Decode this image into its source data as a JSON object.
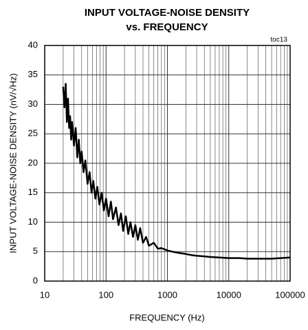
{
  "chart_data": {
    "type": "line",
    "title": "INPUT VOLTAGE-NOISE DENSITY",
    "subtitle": "vs. FREQUENCY",
    "annotation": "toc13",
    "xlabel": "FREQUENCY (Hz)",
    "ylabel": "INPUT VOLTAGE-NOISE DENSITY (nV/√Hz)",
    "xscale": "log",
    "grid": true,
    "xlim": [
      10,
      100000
    ],
    "ylim": [
      0,
      40
    ],
    "xticks": [
      10,
      100,
      1000,
      10000,
      100000
    ],
    "x_minor_ticks": [
      20,
      30,
      40,
      50,
      60,
      70,
      80,
      90,
      200,
      300,
      400,
      500,
      600,
      700,
      800,
      900,
      2000,
      3000,
      4000,
      5000,
      6000,
      7000,
      8000,
      9000,
      20000,
      30000,
      40000,
      50000,
      60000,
      70000,
      80000,
      90000
    ],
    "yticks": [
      0,
      5,
      10,
      15,
      20,
      25,
      30,
      35,
      40
    ],
    "series": [
      {
        "name": null,
        "color": "#000000",
        "x": [
          20,
          21,
          22,
          23,
          24,
          25,
          26,
          27,
          28,
          30,
          32,
          34,
          36,
          38,
          40,
          43,
          46,
          50,
          54,
          58,
          62,
          67,
          72,
          78,
          85,
          92,
          100,
          110,
          120,
          130,
          145,
          160,
          175,
          190,
          210,
          230,
          250,
          275,
          300,
          330,
          360,
          400,
          450,
          500,
          600,
          700,
          800,
          1000,
          1200,
          1500,
          2000,
          2500,
          3000,
          4000,
          5000,
          7000,
          10000,
          15000,
          20000,
          30000,
          50000,
          70000,
          100000
        ],
        "values": [
          33,
          29.5,
          33.5,
          27,
          31,
          26,
          28,
          24,
          27,
          23,
          26,
          21,
          24,
          20,
          22,
          18.5,
          20.5,
          16.5,
          18.5,
          15,
          17,
          14,
          16,
          13,
          15,
          12,
          14,
          11,
          13.5,
          10.5,
          12.5,
          9.5,
          11.5,
          8.5,
          11,
          8,
          10,
          7.5,
          9.5,
          7,
          9,
          6.5,
          7.5,
          6,
          6.5,
          5.5,
          5.6,
          5.2,
          5,
          4.8,
          4.6,
          4.4,
          4.3,
          4.2,
          4.1,
          4,
          3.9,
          3.9,
          3.8,
          3.8,
          3.8,
          3.9,
          4.0
        ]
      }
    ]
  }
}
